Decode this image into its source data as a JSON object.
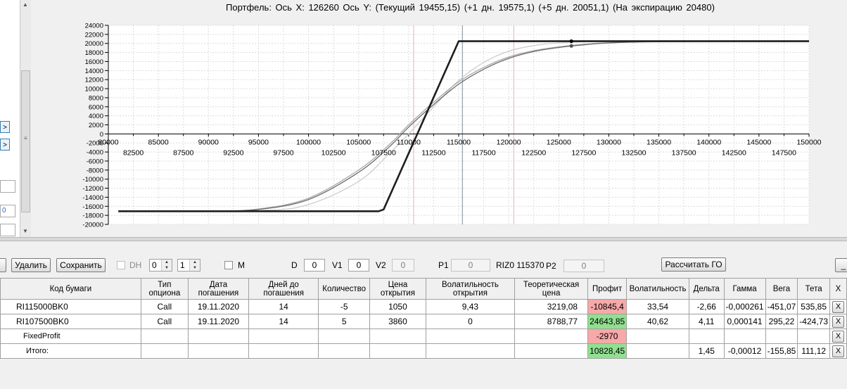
{
  "chart": {
    "title": "Портфель: Ось X: 126260 Ось Y:  (Текущий 19455,15)  (+1 дн. 19575,1)  (+5 дн. 20051,1)  (На экспирацию 20480)"
  },
  "chart_data": {
    "type": "line",
    "title": "Портфель: Ось X: 126260 Ось Y:  (Текущий 19455,15)  (+1 дн. 19575,1)  (+5 дн. 20051,1)  (На экспирацию 20480)",
    "xlim": [
      80000,
      150000
    ],
    "ylim": [
      -20000,
      24000
    ],
    "x_ticks_upper": [
      "80000",
      "85000",
      "90000",
      "95000",
      "100000",
      "105000",
      "110000",
      "115000",
      "120000",
      "125000",
      "130000",
      "135000",
      "140000",
      "145000",
      "150000"
    ],
    "x_ticks_lower": [
      "82500",
      "87500",
      "92500",
      "97500",
      "102500",
      "107500",
      "112500",
      "117500",
      "122500",
      "127500",
      "132500",
      "137500",
      "142500",
      "147500"
    ],
    "y_ticks": [
      "24000",
      "22000",
      "20000",
      "18000",
      "16000",
      "14000",
      "12000",
      "10000",
      "8000",
      "6000",
      "4000",
      "2000",
      "0",
      "-2000",
      "-4000",
      "-6000",
      "-8000",
      "-10000",
      "-12000",
      "-14000",
      "-16000",
      "-18000",
      "-20000"
    ],
    "grid": true,
    "vertical_lines": [
      {
        "x": 110500,
        "color": "#f0a8b8"
      },
      {
        "x": 115370,
        "color": "#7f8a99"
      },
      {
        "x": 120500,
        "color": "#f0a8b8"
      }
    ],
    "cursor": {
      "x": 126260,
      "y": 19455.15
    },
    "series": [
      {
        "color": "#1e1e1e",
        "points": [
          [
            81000,
            -17100
          ],
          [
            107000,
            -17100
          ],
          [
            107500,
            -16700
          ],
          [
            115000,
            20480
          ],
          [
            150000,
            20480
          ]
        ]
      },
      {
        "color": "#6a6a6a",
        "points": [
          [
            81000,
            -17100
          ],
          [
            90000,
            -17050
          ],
          [
            95000,
            -16700
          ],
          [
            100000,
            -14500
          ],
          [
            105000,
            -8500
          ],
          [
            108000,
            -3000
          ],
          [
            110000,
            1500
          ],
          [
            112500,
            6500
          ],
          [
            115000,
            11000
          ],
          [
            117500,
            14300
          ],
          [
            120000,
            16700
          ],
          [
            122500,
            18200
          ],
          [
            125000,
            19100
          ],
          [
            127500,
            19700
          ],
          [
            130000,
            20100
          ],
          [
            135000,
            20400
          ],
          [
            150000,
            20480
          ]
        ]
      },
      {
        "color": "#a8a8a8",
        "points": [
          [
            81000,
            -17100
          ],
          [
            90000,
            -17050
          ],
          [
            95000,
            -16600
          ],
          [
            100000,
            -14200
          ],
          [
            105000,
            -8000
          ],
          [
            108000,
            -2500
          ],
          [
            110000,
            2000
          ],
          [
            112500,
            7000
          ],
          [
            115000,
            11500
          ],
          [
            117500,
            14700
          ],
          [
            120000,
            17000
          ],
          [
            122500,
            18400
          ],
          [
            125000,
            19250
          ],
          [
            127500,
            19800
          ],
          [
            130000,
            20150
          ],
          [
            135000,
            20420
          ],
          [
            150000,
            20480
          ]
        ]
      },
      {
        "color": "#cdcdcd",
        "points": [
          [
            81000,
            -17100
          ],
          [
            95000,
            -16900
          ],
          [
            100000,
            -15600
          ],
          [
            105000,
            -10500
          ],
          [
            108000,
            -4500
          ],
          [
            110000,
            0
          ],
          [
            112500,
            6000
          ],
          [
            115000,
            11800
          ],
          [
            117500,
            15800
          ],
          [
            120000,
            18300
          ],
          [
            122500,
            19500
          ],
          [
            125000,
            20100
          ],
          [
            130000,
            20420
          ],
          [
            150000,
            20480
          ]
        ]
      }
    ]
  },
  "toolbar": {
    "delete_label": "Удалить",
    "save_label": "Сохранить",
    "dh_label": "DH",
    "spin1_value": "0",
    "spin2_value": "1",
    "m_label": "M",
    "d_label": "D",
    "d_value": "0",
    "v1_label": "V1",
    "v1_value": "0",
    "v2_label": "V2",
    "v2_value": "0",
    "p1_label": "P1",
    "p1_value": "0",
    "riz_label": "RIZ0 115370",
    "p2_label": "P2",
    "p2_value": "0",
    "calc_label": "Рассчитать ГО",
    "right_btn_label": "_"
  },
  "table": {
    "headers": [
      "Код бумаги",
      "Тип опциона",
      "Дата погашения",
      "Дней до погашения",
      "Количество",
      "Цена открытия",
      "Волатильность открытия",
      "Теоретическая цена",
      "Профит",
      "Волатильность",
      "Дельта",
      "Гамма",
      "Вега",
      "Тета",
      "X"
    ],
    "rows": [
      [
        "RI115000BK0",
        "Call",
        "19.11.2020",
        "14",
        "-5",
        "1050",
        "9,43",
        "3219,08",
        "-10845,4",
        "33,54",
        "-2,66",
        "-0,000261",
        "-451,07",
        "535,85"
      ],
      [
        "RI107500BK0",
        "Call",
        "19.11.2020",
        "14",
        "5",
        "3860",
        "0",
        "8788,77",
        "24643,85",
        "40,62",
        "4,11",
        "0,000141",
        "295,22",
        "-424,73"
      ],
      [
        "FixedProfit",
        "",
        "",
        "",
        "",
        "",
        "",
        "",
        "-2970",
        "",
        "",
        "",
        "",
        ""
      ],
      [
        "Итого:",
        "",
        "",
        "",
        "",
        "",
        "",
        "",
        "10828,45",
        "",
        "1,45",
        "-0,00012",
        "-155,85",
        "111,12"
      ]
    ],
    "x_label": "X"
  },
  "left_panel": {
    "btn_label": ">",
    "field_value": "0"
  }
}
